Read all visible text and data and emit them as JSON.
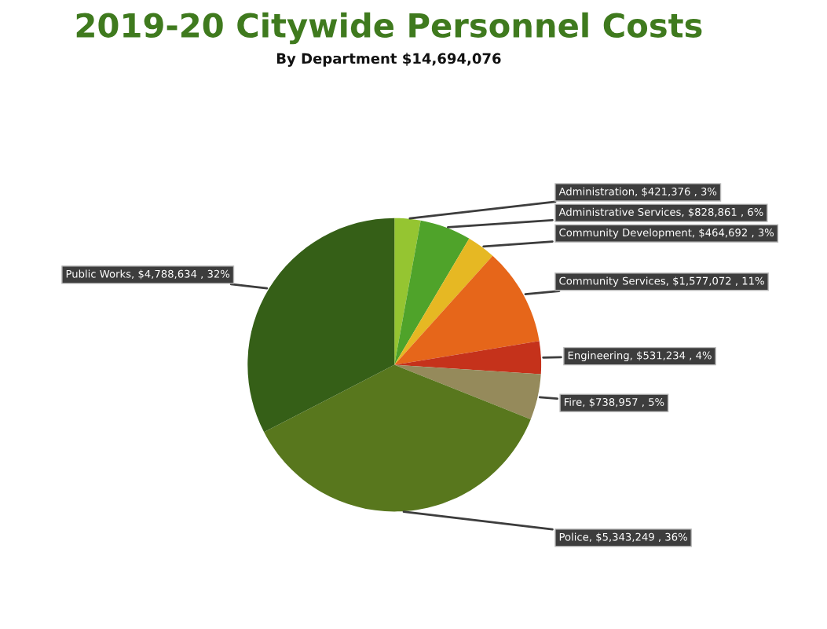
{
  "chart_data": {
    "type": "pie",
    "title": "2019-20 Citywide Personnel Costs",
    "subtitle": "By Department $14,694,076",
    "categories": [
      "Administration",
      "Administrative Services",
      "Community Development",
      "Community Services",
      "Engineering",
      "Fire",
      "Police",
      "Public Works"
    ],
    "values": [
      421376,
      828861,
      464692,
      1577072,
      531234,
      738957,
      5343249,
      4788634
    ],
    "colors": [
      "#95c531",
      "#4fa32a",
      "#e6b823",
      "#e6661a",
      "#c5321b",
      "#958a5b",
      "#58771d",
      "#355f17"
    ],
    "value_labels": [
      "$421,376 , 3%",
      "$828,861 , 6%",
      "$464,692 , 3%",
      "$1,577,072 , 11%",
      "$531,234 , 4%",
      "$738,957 , 5%",
      "$5,343,249 , 36%",
      "$4,788,634 , 32%"
    ],
    "legend": false
  }
}
